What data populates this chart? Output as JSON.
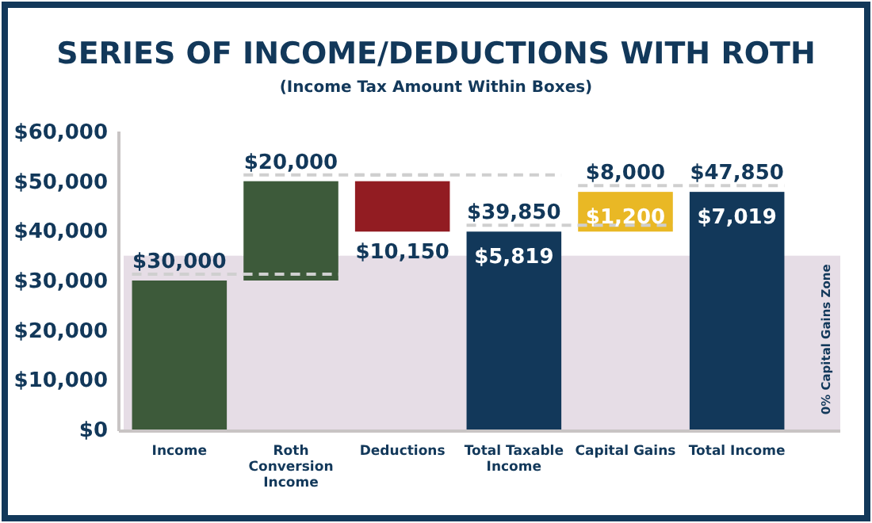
{
  "chart_data": {
    "type": "bar",
    "title": "SERIES OF INCOME/DEDUCTIONS WITH ROTH",
    "subtitle": "(Income Tax Amount Within Boxes)",
    "categories": [
      "Income",
      "Roth Conversion Income",
      "Deductions",
      "Total Taxable Income",
      "Capital Gains",
      "Total Income"
    ],
    "values": [
      30000,
      20000,
      -10150,
      39850,
      8000,
      47850
    ],
    "base": [
      0,
      30000,
      50000,
      0,
      39850,
      0
    ],
    "colors": [
      "#3d5a3a",
      "#3d5a3a",
      "#921c22",
      "#12385a",
      "#e9b825",
      "#12385a"
    ],
    "value_labels": [
      "$30,000",
      "$20,000",
      "$10,150",
      "$39,850",
      "$8,000",
      "$47,850"
    ],
    "annotations": [
      {
        "text": "$5,819",
        "x": "Total Taxable Income",
        "y": 39850
      },
      {
        "text": "$1,200",
        "x": "Capital Gains",
        "y": 47850
      },
      {
        "text": "$7,019",
        "x": "Total Income",
        "y": 47850
      }
    ],
    "bands": [
      {
        "axis": "y",
        "from": 0,
        "to": 35000,
        "label": "0% Capital Gains Zone",
        "color": "#e6dde6"
      }
    ],
    "ylim": [
      0,
      60000
    ],
    "yticks": [
      {
        "value": 0,
        "label": "$0"
      },
      {
        "value": 10000,
        "label": "$10,000"
      },
      {
        "value": 20000,
        "label": "$20,000"
      },
      {
        "value": 30000,
        "label": "$30,000"
      },
      {
        "value": 40000,
        "label": "$40,000"
      },
      {
        "value": 50000,
        "label": "$50,000"
      },
      {
        "value": 60000,
        "label": "$60,000"
      }
    ],
    "grid": false
  }
}
